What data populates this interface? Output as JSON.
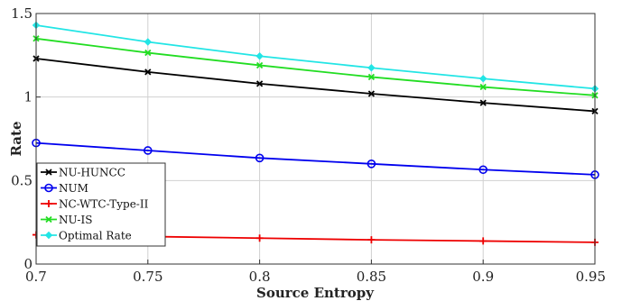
{
  "chart_data": {
    "type": "line",
    "title": "",
    "xlabel": "Source Entropy",
    "ylabel": "Rate",
    "xlim": [
      0.7,
      0.95
    ],
    "ylim": [
      0,
      1.5
    ],
    "x": [
      0.7,
      0.75,
      0.8,
      0.85,
      0.9,
      0.95
    ],
    "xticks": [
      "0.7",
      "0.75",
      "0.8",
      "0.85",
      "0.9",
      "0.95"
    ],
    "yticks": [
      "0",
      "0.5",
      "1",
      "1.5"
    ],
    "ytick_values": [
      0,
      0.5,
      1,
      1.5
    ],
    "grid": true,
    "legend_position": "bottom-left",
    "series": [
      {
        "name": "NU-HUNCC",
        "color": "#000000",
        "marker": "x",
        "values": [
          1.23,
          1.15,
          1.08,
          1.02,
          0.965,
          0.915
        ]
      },
      {
        "name": "NUM",
        "color": "#0000ee",
        "marker": "o",
        "values": [
          0.725,
          0.68,
          0.635,
          0.6,
          0.565,
          0.535
        ]
      },
      {
        "name": "NC-WTC-Type-II",
        "color": "#ee0000",
        "marker": "+",
        "values": [
          0.175,
          0.165,
          0.155,
          0.145,
          0.138,
          0.13
        ]
      },
      {
        "name": "NU-IS",
        "color": "#22dd22",
        "marker": "x",
        "values": [
          1.35,
          1.265,
          1.19,
          1.12,
          1.06,
          1.01
        ]
      },
      {
        "name": "Optimal Rate",
        "color": "#22e5e5",
        "marker": "d",
        "values": [
          1.43,
          1.33,
          1.245,
          1.175,
          1.11,
          1.05
        ]
      }
    ]
  }
}
